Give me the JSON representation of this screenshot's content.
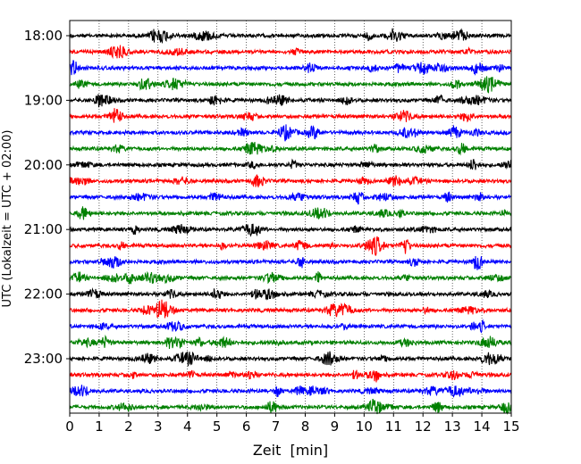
{
  "chart_data": {
    "type": "line",
    "title": "",
    "xlabel": "Zeit  [min]",
    "ylabel": "UTC (Lokalzeit = UTC + 02:00)",
    "xlim": [
      0,
      15
    ],
    "x_ticks": [
      "0",
      "1",
      "2",
      "3",
      "4",
      "5",
      "6",
      "7",
      "8",
      "9",
      "10",
      "11",
      "12",
      "13",
      "14",
      "15"
    ],
    "y_tick_labels": [
      "18:00",
      "19:00",
      "20:00",
      "21:00",
      "22:00",
      "23:00"
    ],
    "trace_start_times": [
      "18:00",
      "18:15",
      "18:30",
      "18:45",
      "19:00",
      "19:15",
      "19:30",
      "19:45",
      "20:00",
      "20:15",
      "20:30",
      "20:45",
      "21:00",
      "21:15",
      "21:30",
      "21:45",
      "22:00",
      "22:15",
      "22:30",
      "22:45",
      "23:00",
      "23:15",
      "23:30",
      "23:45"
    ],
    "trace_color_cycle": [
      "#000000",
      "#ff0000",
      "#0000ff",
      "#008000"
    ],
    "grid_x": true,
    "grid_style": "dotted",
    "legend": "none"
  }
}
